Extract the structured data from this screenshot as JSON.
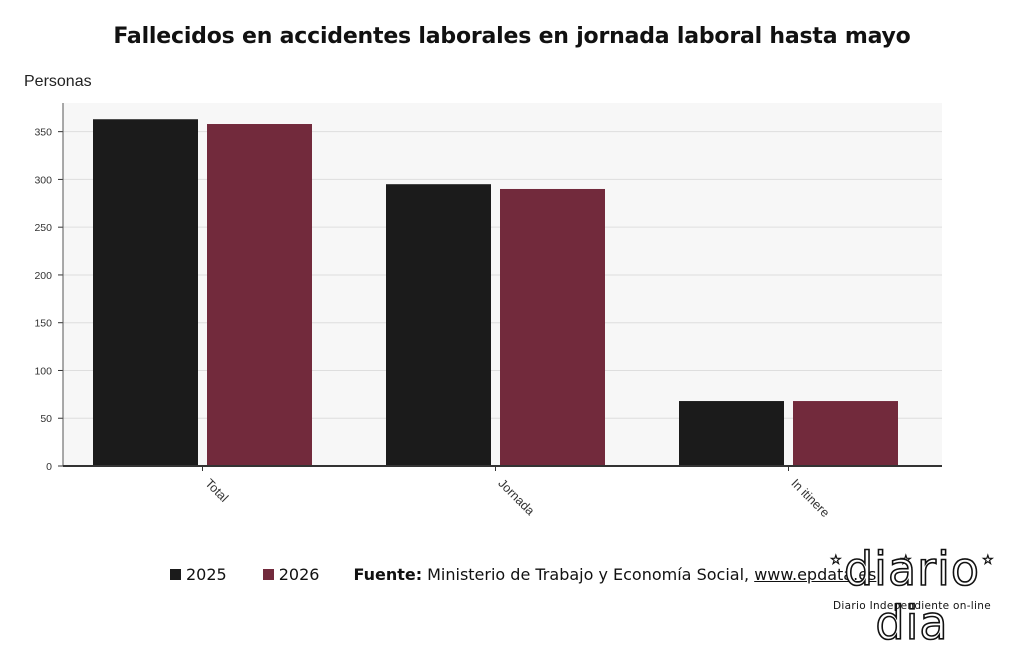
{
  "chart_data": {
    "type": "bar",
    "title": "Fallecidos en accidentes laborales en jornada laboral hasta mayo",
    "ylabel": "Personas",
    "xlabel": "",
    "categories": [
      "Total",
      "Jornada",
      "In itinere"
    ],
    "series": [
      {
        "name": "2025",
        "values": [
          363,
          295,
          68
        ],
        "color": "#1b1b1b"
      },
      {
        "name": "2026",
        "values": [
          358,
          290,
          68
        ],
        "color": "#722a3c"
      }
    ],
    "ylim": [
      0,
      380
    ],
    "yticks": [
      0,
      50,
      100,
      150,
      200,
      250,
      300,
      350
    ],
    "grid": true,
    "legend_position": "bottom-left",
    "plot_background": "#f7f7f7",
    "grid_color": "#dedede"
  },
  "source": {
    "label": "Fuente:",
    "text": "Ministerio de Trabajo y Economía Social,",
    "link": "www.epdata.es"
  },
  "logo": {
    "text": "diario dia",
    "tagline": "Diario Independiente on-line"
  }
}
